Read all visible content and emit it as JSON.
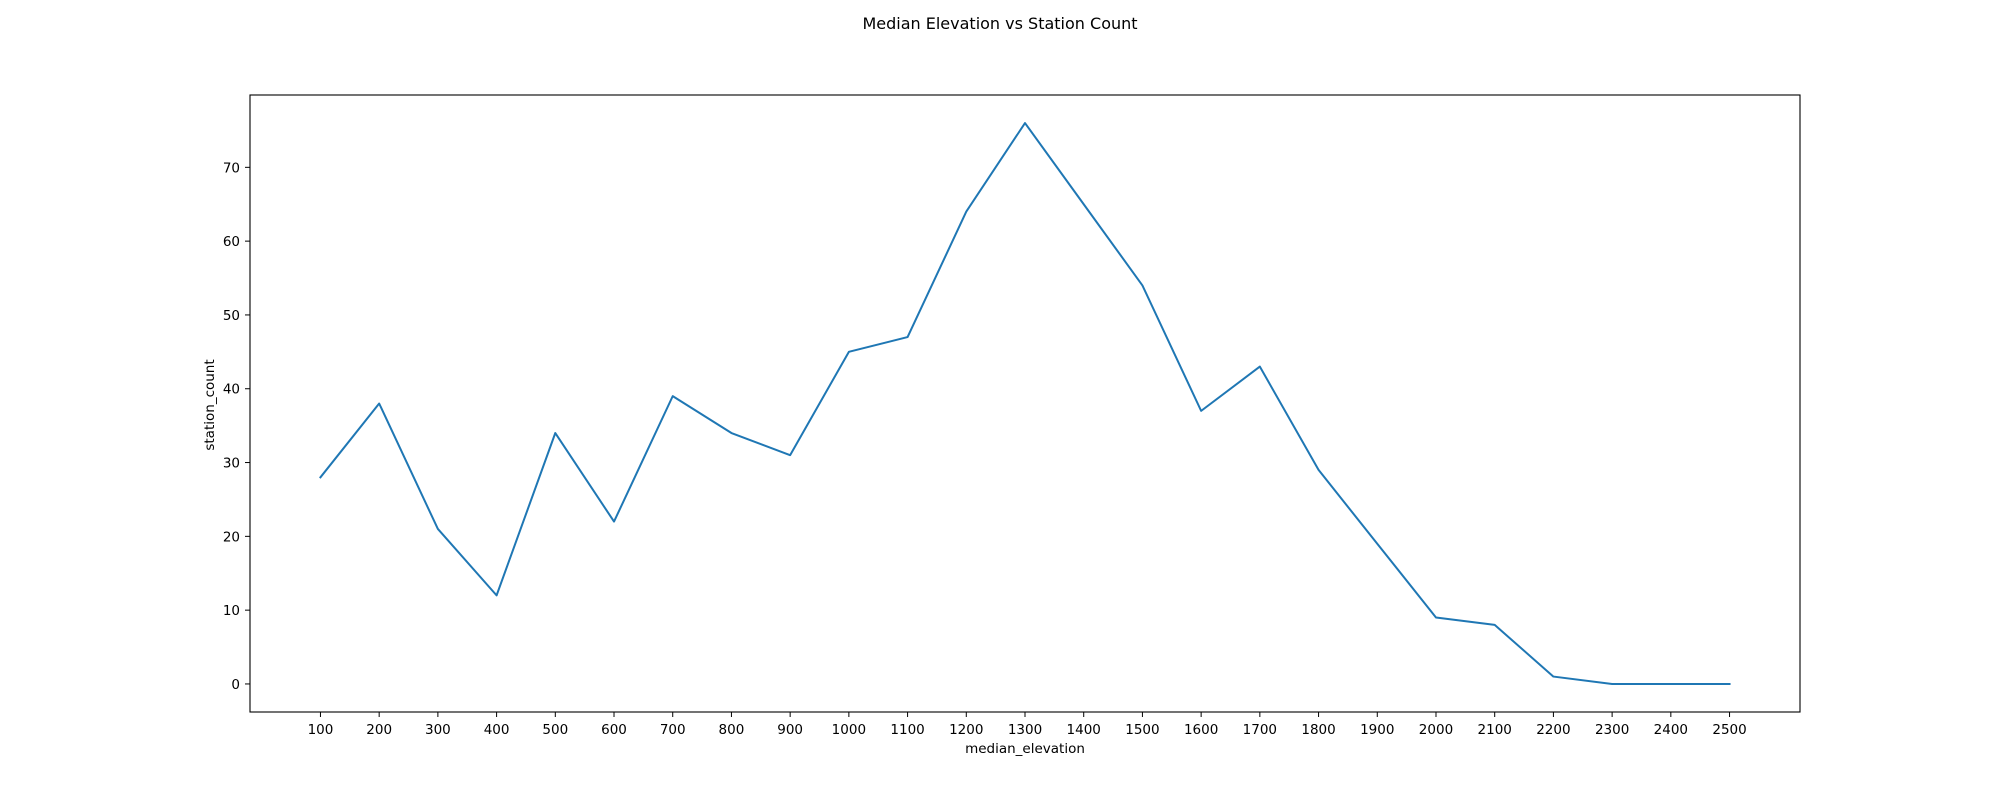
{
  "chart_data": {
    "type": "line",
    "title": "Median Elevation vs Station Count",
    "xlabel": "median_elevation",
    "ylabel": "station_count",
    "x": [
      100,
      200,
      300,
      400,
      500,
      600,
      700,
      800,
      900,
      1000,
      1100,
      1200,
      1300,
      1400,
      1500,
      1600,
      1700,
      1800,
      1900,
      2000,
      2100,
      2200,
      2300,
      2400,
      2500
    ],
    "series": [
      {
        "values": [
          28,
          38,
          21,
          12,
          34,
          22,
          39,
          34,
          31,
          45,
          47,
          64,
          76,
          65,
          54,
          37,
          43,
          29,
          19,
          9,
          8,
          1,
          0,
          0,
          0
        ],
        "color": "#1f77b4"
      }
    ],
    "x_ticks": [
      "100",
      "200",
      "300",
      "400",
      "500",
      "600",
      "700",
      "800",
      "900",
      "1000",
      "1100",
      "1200",
      "1300",
      "1400",
      "1500",
      "1600",
      "1700",
      "1800",
      "1900",
      "2000",
      "2100",
      "2200",
      "2300",
      "2400",
      "2500"
    ],
    "y_ticks": [
      "0",
      "10",
      "20",
      "30",
      "40",
      "50",
      "60",
      "70"
    ],
    "xlim": [
      -20,
      2620
    ],
    "ylim": [
      -3.8,
      79.8
    ],
    "grid": false,
    "legend": false
  }
}
